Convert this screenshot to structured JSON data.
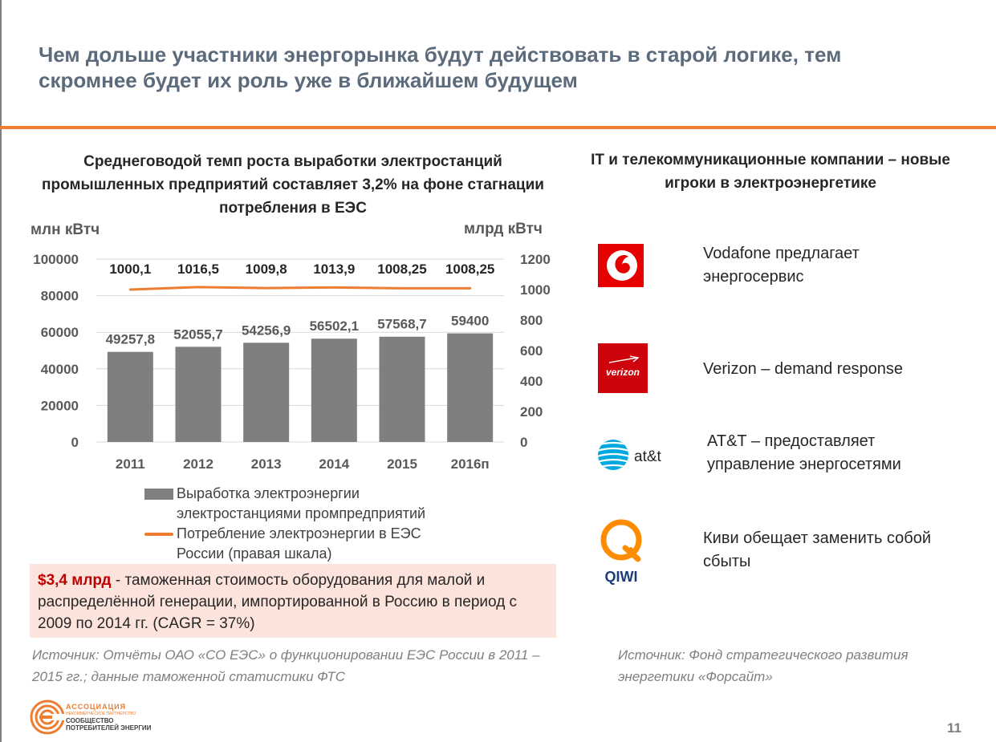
{
  "slide": {
    "title": "Чем дольше участники энергорынка будут действовать в старой логике, тем скромнее будет их роль уже в ближайшем будущем",
    "page_number": "11"
  },
  "chart_section": {
    "title": "Среднеговодой темп роста выработки электростанций промышленных предприятий составляет 3,2% на фоне стагнации потребления в ЕЭС",
    "left_unit": "млн кВтч",
    "right_unit": "млрд кВтч"
  },
  "chart_data": {
    "type": "bar",
    "categories": [
      "2011",
      "2012",
      "2013",
      "2014",
      "2015",
      "2016п"
    ],
    "series": [
      {
        "name": "Выработка электроэнергии электростанциями промпредприятий",
        "kind": "bar",
        "axis": "left",
        "values": [
          49257.8,
          52055.7,
          54256.9,
          56502.1,
          57568.7,
          59400
        ],
        "labels": [
          "49257,8",
          "52055,7",
          "54256,9",
          "56502,1",
          "57568,7",
          "59400"
        ],
        "color": "#7f7f7f"
      },
      {
        "name": "Потребление электроэнергии в ЕЭС России (правая шкала)",
        "kind": "line",
        "axis": "right",
        "values": [
          1000.1,
          1016.5,
          1009.8,
          1013.9,
          1008.25,
          1008.25
        ],
        "labels": [
          "1000,1",
          "1016,5",
          "1009,8",
          "1013,9",
          "1008,25",
          "1008,25"
        ],
        "color": "#ed7d31"
      }
    ],
    "ylabel": "млн кВтч",
    "y2label": "млрд кВтч",
    "ylim": [
      0,
      100000
    ],
    "y2lim": [
      0,
      1200
    ],
    "yticks": [
      "0",
      "20000",
      "40000",
      "60000",
      "80000",
      "100000"
    ],
    "y2ticks": [
      "0",
      "200",
      "400",
      "600",
      "800",
      "1000",
      "1200"
    ],
    "grid": true,
    "legend_position": "bottom",
    "legend": [
      "Выработка электроэнергии электростанциями промпредприятий",
      "Потребление электроэнергии в ЕЭС России (правая шкала)"
    ]
  },
  "note": {
    "highlight": "$3,4 млрд",
    "text": " - таможенная стоимость оборудования для малой и распределённой генерации, импортированной в Россию в период с 2009 по 2014 гг. (CAGR = 37%)"
  },
  "source_left": "Источник: Отчёты ОАО «СО ЕЭС» о функционировании ЕЭС России в 2011 – 2015 гг.; данные таможенной статистики ФТС",
  "right_section": {
    "title": "IT и телекоммуникационные компании – новые игроки в электроэнергетике",
    "companies": [
      {
        "logo": "vodafone-logo",
        "text": "Vodafone предлагает энергосервис"
      },
      {
        "logo": "verizon-logo",
        "logo_text": "verizon",
        "text": "Verizon – demand response"
      },
      {
        "logo": "att-logo",
        "logo_text": "at&t",
        "text": "AT&T – предоставляет управление энергосетями"
      },
      {
        "logo": "qiwi-logo",
        "logo_text": "QIWI",
        "text": "Киви обещает заменить собой сбыты"
      }
    ],
    "source": "Источник: Фонд стратегического развития энергетики «Форсайт»"
  },
  "footer": {
    "org_name": "АССОЦИАЦИЯ",
    "org_sub": "НЕКОММЕРЧЕСКОЕ ПАРТНЕРСТВО",
    "org_full": "СООБЩЕСТВО ПОТРЕБИТЕЛЕЙ ЭНЕРГИИ"
  },
  "colors": {
    "accent": "#ed7d31",
    "title": "#5b6b7b",
    "bar": "#7f7f7f",
    "note_bg": "#fce4dc",
    "highlight": "#c00000"
  }
}
